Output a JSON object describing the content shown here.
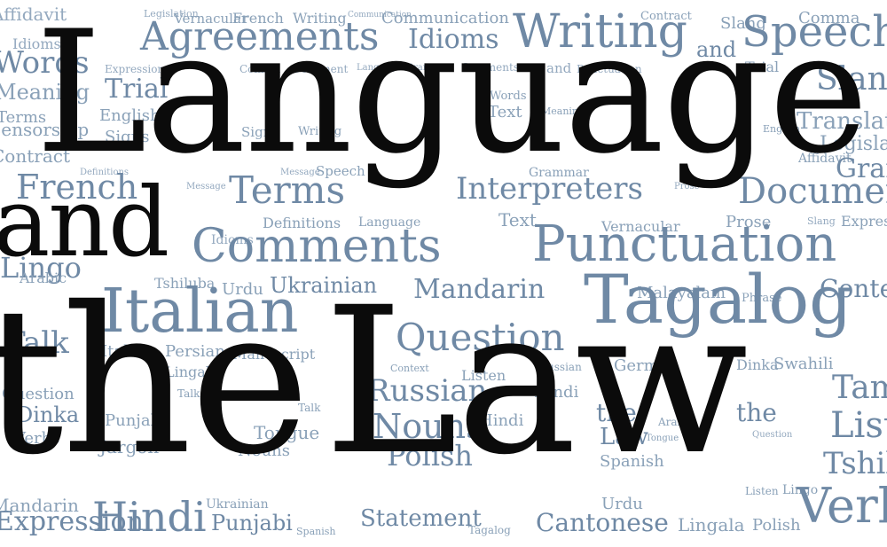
{
  "title_words": [
    "Language",
    "and",
    "the",
    "Law"
  ],
  "colors": {
    "title": "#0b0b0b",
    "cloud": "#7a93ad",
    "background": "#ffffff"
  },
  "words": {
    "w01": "Affidavit",
    "w02": "Idioms",
    "w03": "Words",
    "w04": "Meaning",
    "w05": "Terms",
    "w06": "Censorship",
    "w07": "Contract",
    "w08": "Legislation",
    "w09": "Vernacular",
    "w10": "French",
    "w11": "Writing",
    "w12": "Communication",
    "w13": "Contract",
    "w14": "Slang",
    "w15": "Comma",
    "w16": "Agreements",
    "w17": "Idioms",
    "w18": "Writing",
    "w19": "Speech",
    "w20": "and",
    "w21": "Slang",
    "w22": "Trial",
    "w23": "English",
    "w24": "Signs",
    "w25": "Trial",
    "w26": "Translation",
    "w27": "Legislation",
    "w28": "Affidavit",
    "w29": "Grammar",
    "w30": "French",
    "w31": "Terms",
    "w32": "Interpreters",
    "w33": "Document",
    "w34": "Comments",
    "w35": "Punctuation",
    "w36": "Text",
    "w37": "Prose",
    "w38": "Expression",
    "w39": "Language",
    "w40": "Definitions",
    "w41": "Message",
    "w42": "Idioms",
    "w43": "Vernacular",
    "w44": "Italian",
    "w45": "Mandarin",
    "w46": "Tagalog",
    "w47": "Question",
    "w48": "Ukrainian",
    "w49": "Urdu",
    "w50": "Tshiluba",
    "w51": "Arabic",
    "w52": "Lingo",
    "w53": "Talk",
    "w54": "Persian",
    "w55": "Lingala",
    "w56": "Manuscript",
    "w57": "Malayalam",
    "w58": "Context",
    "w59": "Russian",
    "w60": "Nouns",
    "w61": "Hindi",
    "w62": "Polish",
    "w63": "German",
    "w64": "Dinka",
    "w65": "Swahili",
    "w66": "Tamil",
    "w67": "Listen",
    "w68": "Tshiluba",
    "w69": "Verbs",
    "w70": "Hindi",
    "w71": "Punjabi",
    "w72": "Statement",
    "w73": "Cantonese",
    "w74": "Lingala",
    "w75": "Polish",
    "w76": "Spanish",
    "w77": "Urdu",
    "w78": "Expression",
    "w79": "Mandarin",
    "w80": "Question",
    "w81": "Jargon",
    "w82": "Tongue",
    "w83": "Dinka",
    "w84": "Verbs",
    "w85": "Talk",
    "w86": "Phrase",
    "w87": "Listen",
    "w88": "Cantonese",
    "w89": "the",
    "w90": "Law",
    "w91": "the",
    "w92": "Italian",
    "w93": "Lingo",
    "w94": "Comma",
    "w95": "Document",
    "w96": "Language",
    "w97": "Grammar",
    "w98": "Comments",
    "w99": "Punctuation",
    "w100": "Words",
    "w101": "Text",
    "w102": "Meaning",
    "w103": "Writing",
    "w104": "Signs",
    "w105": "Speech",
    "w106": "Message",
    "w107": "Document",
    "w108": "Prose",
    "w109": "and",
    "w110": "Text",
    "w111": "Talk",
    "w112": "Nouns",
    "w113": "Tongue",
    "w114": "Punjabi",
    "w115": "Agreements",
    "w116": "Expression",
    "w117": "Interpreters",
    "w118": "Hindi",
    "w119": "English",
    "w120": "Trial",
    "w121": "Verbs",
    "w122": "Listen",
    "w123": "Mandarin",
    "w124": "Spanish",
    "w125": "Tagalog",
    "w126": "Statement",
    "w127": "Lingo",
    "w128": "Tongue",
    "w129": "Arabic",
    "w130": "Ukrainian",
    "w131": "Russian",
    "w132": "Tamil",
    "w133": "Italian",
    "w134": "Persian",
    "w135": "Swahili",
    "w136": "Context",
    "w137": "Question",
    "w138": "Comma",
    "w139": "Slang",
    "w140": "Affidavit",
    "w141": "Translation",
    "w142": "Expression",
    "w143": "Legislation",
    "w144": "Definitions",
    "w145": "Communication",
    "w146": "Censorship",
    "w147": "Vernacular",
    "w148": "Phrase",
    "w149": "Words",
    "w150": "Meaning"
  }
}
